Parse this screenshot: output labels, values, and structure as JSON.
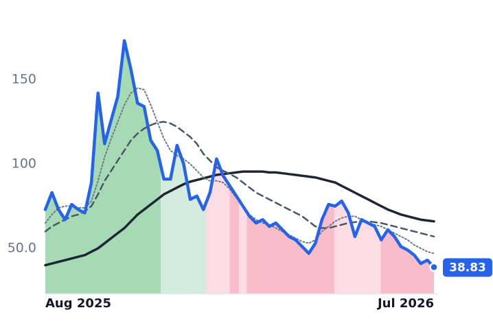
{
  "chart_data": {
    "type": "line",
    "xlim": [
      0,
      59
    ],
    "xticks": [
      {
        "value": 0,
        "label": "Aug 2025"
      },
      {
        "value": 59,
        "label": "Jul 2026"
      }
    ],
    "ylim": [
      23.2,
      180.9
    ],
    "yticks": [
      {
        "value": 50,
        "label": "50.0"
      },
      100,
      150
    ],
    "zones": [
      {
        "from": 0,
        "to": 17.5,
        "color": "#a6dab4"
      },
      {
        "from": 17.5,
        "to": 24.4,
        "color": "#d4ecdd"
      },
      {
        "from": 24.4,
        "to": 28,
        "color": "#fddde3"
      },
      {
        "from": 28,
        "to": 29.4,
        "color": "#f8bdc9"
      },
      {
        "from": 29.4,
        "to": 30.6,
        "color": "#fddde3"
      },
      {
        "from": 30.6,
        "to": 43.9,
        "color": "#f8bdc9"
      },
      {
        "from": 43.9,
        "to": 50.9,
        "color": "#fddde3"
      },
      {
        "from": 50.9,
        "to": 59,
        "color": "#f8bdc9"
      }
    ],
    "series": [
      {
        "color": "#2563eb",
        "style": "solid",
        "width": 4.5,
        "values": [
          73,
          83,
          73,
          67,
          76,
          73,
          71,
          89,
          142,
          112,
          126,
          140,
          173,
          156,
          136,
          134,
          114,
          108,
          91,
          91,
          111,
          100,
          79,
          81,
          73,
          83,
          103,
          93,
          87,
          81,
          75,
          69,
          65,
          67,
          63,
          65,
          61,
          57,
          55,
          51,
          47,
          53,
          67,
          76,
          75,
          78,
          71,
          57,
          67,
          65,
          63,
          55,
          61,
          57,
          51,
          49,
          46,
          41,
          43,
          38.83
        ]
      },
      {
        "color": "#6b7a8d",
        "style": "dotted",
        "width": 2,
        "values": [
          65,
          70,
          74,
          75,
          75,
          74,
          74,
          78,
          90,
          104,
          115,
          125,
          135,
          142,
          145,
          144,
          135,
          125,
          115,
          108,
          105,
          103,
          100,
          96,
          92,
          90,
          90,
          89,
          85,
          80,
          75,
          70,
          67,
          65,
          64,
          62,
          60,
          58,
          56,
          54,
          53,
          55,
          60,
          63,
          66,
          68,
          69,
          69,
          67,
          65,
          64,
          63,
          61,
          59,
          57,
          55,
          52,
          50,
          48,
          47
        ]
      },
      {
        "color": "#4a5568",
        "style": "dashed",
        "width": 2.5,
        "values": [
          60,
          63,
          65,
          67,
          69,
          70,
          72,
          75,
          82,
          90,
          96,
          102,
          108,
          114,
          118,
          121,
          123,
          124.5,
          125,
          124,
          122,
          119,
          116,
          112,
          106,
          102,
          98,
          96,
          94,
          92,
          89,
          86,
          83,
          81,
          79,
          77,
          75,
          73,
          71,
          69,
          66,
          63,
          62,
          62,
          63,
          64,
          65,
          65.5,
          66,
          66,
          65.5,
          65,
          64,
          63,
          62,
          61,
          60,
          59,
          58,
          57
        ]
      },
      {
        "color": "#1e2535",
        "style": "solid",
        "width": 3.5,
        "values": [
          40,
          41,
          42,
          43,
          44,
          45,
          46,
          48,
          50,
          53,
          56,
          59,
          62,
          66,
          70,
          73,
          76,
          79,
          82,
          84,
          86,
          88,
          89.5,
          90.5,
          91.5,
          92.5,
          93.5,
          94,
          94.5,
          95,
          95.5,
          95.5,
          95.5,
          95.5,
          95,
          95,
          94.5,
          94,
          93.5,
          93,
          92.5,
          92,
          91,
          90,
          89,
          87,
          85,
          83,
          81,
          79,
          77,
          75,
          73,
          71.5,
          70,
          69,
          68,
          67,
          66.5,
          66
        ]
      }
    ]
  }
}
